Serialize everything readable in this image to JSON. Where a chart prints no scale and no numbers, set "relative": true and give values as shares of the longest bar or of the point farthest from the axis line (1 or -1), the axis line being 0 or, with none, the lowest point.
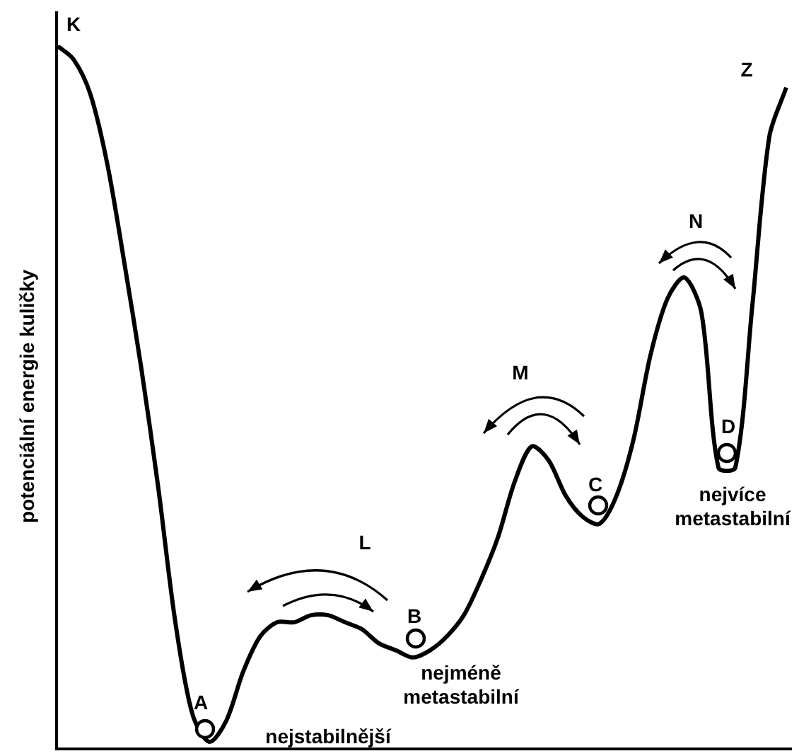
{
  "chart_data": {
    "type": "line",
    "relative": true,
    "ylabel": "potenciální energie kuličky",
    "color": "#000000",
    "marker": "none",
    "legend": false,
    "categories": [
      null,
      null,
      null,
      null,
      null,
      null,
      null,
      null,
      null,
      null,
      null,
      null,
      null,
      null,
      null,
      null,
      null,
      null,
      null,
      null,
      null,
      null,
      null,
      null,
      null,
      null,
      null,
      null,
      null,
      null,
      null,
      null,
      null,
      null,
      null,
      null,
      null,
      null,
      null,
      null,
      null,
      null,
      null,
      null
    ],
    "values": [
      1.0,
      0.98,
      0.93,
      0.83,
      0.69,
      0.54,
      0.37,
      0.18,
      0.05,
      0.01,
      0.04,
      0.11,
      0.16,
      0.18,
      0.18,
      0.19,
      0.19,
      0.18,
      0.17,
      0.15,
      0.14,
      0.13,
      0.14,
      0.16,
      0.19,
      0.24,
      0.3,
      0.38,
      0.43,
      0.41,
      0.36,
      0.33,
      0.32,
      0.36,
      0.44,
      0.56,
      0.64,
      0.67,
      0.62,
      0.4,
      0.4,
      0.63,
      0.87,
      0.94
    ],
    "annotations": [
      "K",
      "Z",
      "A",
      "nejstabilnější",
      "B",
      "nejméně metastabilní",
      "C",
      "D",
      "nejvíce metastabilní",
      "L",
      "M",
      "N"
    ]
  }
}
